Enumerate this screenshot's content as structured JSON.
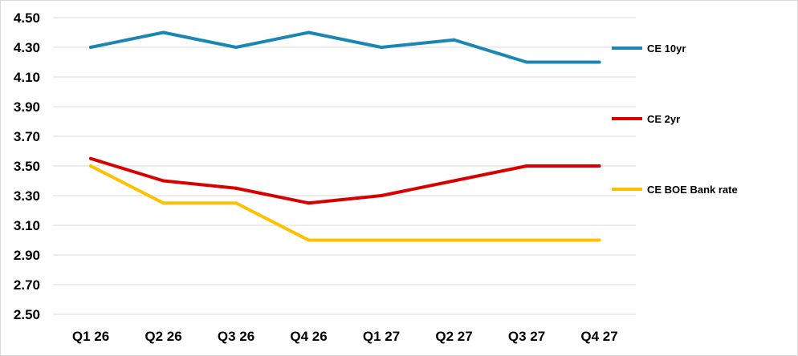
{
  "chart_data": {
    "type": "line",
    "title": "",
    "xlabel": "",
    "ylabel": "",
    "categories": [
      "Q1 26",
      "Q2 26",
      "Q3 26",
      "Q4 26",
      "Q1 27",
      "Q2 27",
      "Q3 27",
      "Q4 27"
    ],
    "ylim": [
      2.5,
      4.5
    ],
    "yticks": [
      "4.50",
      "4.30",
      "4.10",
      "3.90",
      "3.70",
      "3.50",
      "3.30",
      "3.10",
      "2.90",
      "2.70",
      "2.50"
    ],
    "grid": "horizontal",
    "legend_placement": "right",
    "series": [
      {
        "name": "CE 10yr",
        "color": "#1a86b3",
        "values": [
          4.3,
          4.4,
          4.3,
          4.4,
          4.3,
          4.35,
          4.2,
          4.2
        ]
      },
      {
        "name": "CE 2yr",
        "color": "#d90000",
        "values": [
          3.55,
          3.4,
          3.35,
          3.25,
          3.3,
          3.4,
          3.5,
          3.5
        ]
      },
      {
        "name": "CE BOE Bank rate",
        "color": "#ffc000",
        "values": [
          3.5,
          3.25,
          3.25,
          3.0,
          3.0,
          3.0,
          3.0,
          3.0
        ]
      }
    ]
  }
}
